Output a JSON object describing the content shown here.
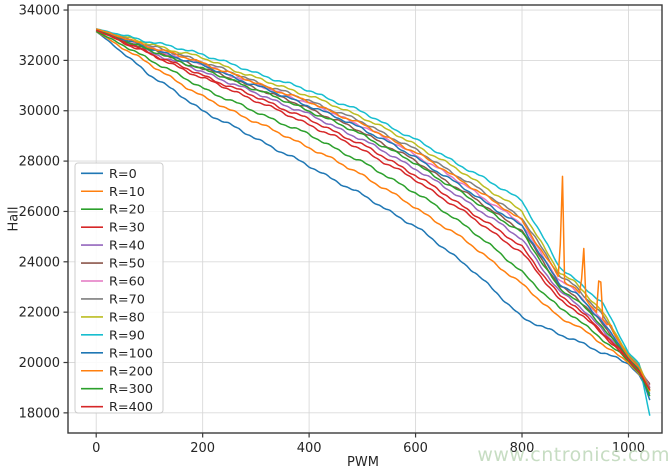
{
  "figure": {
    "background": "#ffffff",
    "text_color": "#262626",
    "grid_color": "#d9d9d9",
    "spine_color": "#3a3a3a"
  },
  "watermark": {
    "text": "www.cntronics.com",
    "color": "#c7ddc3"
  },
  "chart_data": {
    "type": "line",
    "title": "",
    "xlabel": "PWM",
    "ylabel": "Hall",
    "grid": true,
    "legend_position": "center-left",
    "xlim": [
      -53,
      1063
    ],
    "ylim": [
      17200,
      34200
    ],
    "x_ticks": [
      0,
      200,
      400,
      600,
      800,
      1000
    ],
    "y_ticks": [
      18000,
      20000,
      22000,
      24000,
      26000,
      28000,
      30000,
      32000,
      34000
    ],
    "anchor_x": [
      0,
      100,
      200,
      300,
      400,
      500,
      600,
      700,
      800,
      870,
      900,
      950,
      1000,
      1020,
      1040
    ],
    "series": [
      {
        "name": "R=0",
        "color": "#1f77b4",
        "values": [
          33150,
          31450,
          30000,
          28900,
          27800,
          26650,
          25400,
          23800,
          21800,
          21100,
          20900,
          20400,
          19950,
          19500,
          18750
        ]
      },
      {
        "name": "R=10",
        "color": "#ff7f0e",
        "values": [
          33150,
          31850,
          30550,
          29550,
          28550,
          27450,
          26150,
          24750,
          23100,
          21800,
          21500,
          20750,
          20000,
          19550,
          18950
        ]
      },
      {
        "name": "R=20",
        "color": "#2ca02c",
        "values": [
          33150,
          32050,
          30900,
          29950,
          29050,
          27950,
          26750,
          25350,
          23600,
          22150,
          21800,
          20950,
          20050,
          19600,
          18900
        ]
      },
      {
        "name": "R=30",
        "color": "#d62728",
        "values": [
          33200,
          32250,
          31300,
          30400,
          29450,
          28450,
          27250,
          25850,
          24350,
          22500,
          22100,
          21150,
          20100,
          19650,
          19100
        ]
      },
      {
        "name": "R=40",
        "color": "#9467bd",
        "values": [
          33200,
          32350,
          31550,
          30700,
          29850,
          28850,
          27700,
          26350,
          24900,
          22800,
          22400,
          21350,
          20150,
          19700,
          19000
        ]
      },
      {
        "name": "R=50",
        "color": "#8c564b",
        "values": [
          33200,
          32450,
          31700,
          30900,
          30100,
          29150,
          28000,
          26650,
          25250,
          23050,
          22650,
          21550,
          20200,
          19750,
          19150
        ]
      },
      {
        "name": "R=60",
        "color": "#e377c2",
        "values": [
          33250,
          32520,
          31850,
          31050,
          30300,
          29400,
          28250,
          26950,
          25500,
          23250,
          22850,
          21700,
          20250,
          19800,
          19050
        ]
      },
      {
        "name": "R=70",
        "color": "#7f7f7f",
        "values": [
          33250,
          32580,
          31950,
          31150,
          30400,
          29550,
          28450,
          27150,
          25750,
          23450,
          23050,
          21900,
          20300,
          19850,
          19000
        ]
      },
      {
        "name": "R=80",
        "color": "#bcbd22",
        "values": [
          33250,
          32650,
          32100,
          31300,
          30600,
          29750,
          28650,
          27400,
          26000,
          23600,
          23150,
          22050,
          20350,
          19900,
          18850
        ]
      },
      {
        "name": "R=90",
        "color": "#17becf",
        "values": [
          33250,
          32750,
          32250,
          31500,
          30800,
          29950,
          28850,
          27650,
          26450,
          23800,
          23300,
          22400,
          20400,
          19950,
          17900
        ]
      },
      {
        "name": "R=100",
        "color": "#1f77b4",
        "values": [
          33200,
          32480,
          31800,
          31000,
          30200,
          29300,
          28150,
          26800,
          25400,
          23150,
          22750,
          21650,
          20200,
          19750,
          18500
        ]
      },
      {
        "name": "R=200",
        "color": "#ff7f0e",
        "values": [
          33250,
          32550,
          31900,
          31100,
          30350,
          29450,
          28350,
          27050,
          25650,
          23350,
          22950,
          21800,
          20250,
          19800,
          18850
        ],
        "spikes": [
          [
            875,
            28760
          ],
          [
            915,
            25160
          ],
          [
            946,
            24600
          ],
          [
            966,
            21660
          ]
        ]
      },
      {
        "name": "R=300",
        "color": "#2ca02c",
        "values": [
          33200,
          32400,
          31650,
          30850,
          30000,
          29050,
          27900,
          26550,
          25150,
          22950,
          22550,
          21450,
          20150,
          19700,
          18650
        ]
      },
      {
        "name": "R=400",
        "color": "#d62728",
        "values": [
          33200,
          32300,
          31400,
          30550,
          29650,
          28650,
          27450,
          26050,
          24600,
          22650,
          22250,
          21250,
          20100,
          19650,
          18900
        ]
      }
    ]
  }
}
